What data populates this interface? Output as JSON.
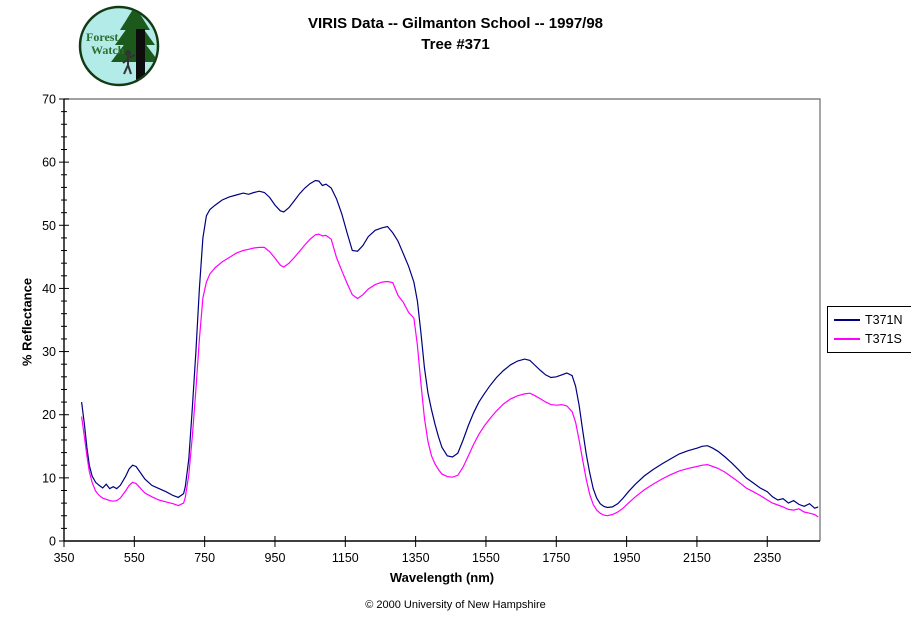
{
  "header": {
    "title_line1": "VIRIS Data -- Gilmanton School -- 1997/98",
    "title_line2": "Tree #371"
  },
  "logo": {
    "line1": "Forest",
    "line2": "Watch",
    "bg_color": "#b2ebe7",
    "tree_color": "#1c5a1c",
    "text_color": "#2f6d2f"
  },
  "legend": {
    "items": [
      {
        "label": "T371N",
        "color": "#000080"
      },
      {
        "label": "T371S",
        "color": "#ff00ff"
      }
    ]
  },
  "footer": {
    "copyright": "© 2000 University of New Hampshire"
  },
  "chart_data": {
    "type": "line",
    "title": "VIRIS Data -- Gilmanton School -- 1997/98 Tree #371",
    "xlabel": "Wavelength (nm)",
    "ylabel": "% Reflectance",
    "xlim": [
      350,
      2500
    ],
    "ylim": [
      0,
      70
    ],
    "x_ticks": [
      350,
      550,
      750,
      950,
      1150,
      1350,
      1550,
      1750,
      1950,
      2150,
      2350
    ],
    "y_ticks": [
      0,
      10,
      20,
      30,
      40,
      50,
      60,
      70
    ],
    "y_minor_step": 2,
    "grid": false,
    "legend_position": "right-outside",
    "frame_color": "#808080",
    "axis_color": "#000000",
    "x": [
      400,
      408,
      415,
      422,
      430,
      440,
      450,
      460,
      470,
      480,
      490,
      500,
      510,
      525,
      535,
      545,
      555,
      565,
      580,
      600,
      620,
      640,
      660,
      675,
      690,
      695,
      705,
      715,
      725,
      735,
      745,
      755,
      765,
      780,
      800,
      820,
      840,
      860,
      875,
      890,
      905,
      920,
      935,
      950,
      965,
      975,
      990,
      1005,
      1020,
      1035,
      1050,
      1065,
      1075,
      1085,
      1095,
      1110,
      1125,
      1140,
      1155,
      1170,
      1185,
      1200,
      1215,
      1235,
      1255,
      1270,
      1285,
      1300,
      1315,
      1330,
      1345,
      1355,
      1365,
      1375,
      1385,
      1395,
      1405,
      1415,
      1425,
      1440,
      1455,
      1470,
      1485,
      1500,
      1515,
      1530,
      1545,
      1560,
      1580,
      1600,
      1620,
      1640,
      1660,
      1675,
      1690,
      1705,
      1720,
      1735,
      1750,
      1765,
      1780,
      1795,
      1805,
      1815,
      1825,
      1835,
      1845,
      1855,
      1865,
      1875,
      1885,
      1895,
      1910,
      1925,
      1940,
      1955,
      1975,
      2000,
      2025,
      2050,
      2075,
      2100,
      2125,
      2150,
      2165,
      2180,
      2195,
      2210,
      2230,
      2250,
      2270,
      2290,
      2310,
      2330,
      2350,
      2365,
      2380,
      2395,
      2410,
      2425,
      2440,
      2455,
      2470,
      2485,
      2495
    ],
    "series": [
      {
        "name": "T371N",
        "color": "#000080",
        "values": [
          22.0,
          18.5,
          14.8,
          12.0,
          10.3,
          9.3,
          8.8,
          8.4,
          9.0,
          8.3,
          8.6,
          8.3,
          8.8,
          10.2,
          11.4,
          12.0,
          11.8,
          11.0,
          9.8,
          8.8,
          8.3,
          7.8,
          7.2,
          6.9,
          7.5,
          8.6,
          13.0,
          21.0,
          30.0,
          40.0,
          48.0,
          51.5,
          52.5,
          53.2,
          54.0,
          54.5,
          54.8,
          55.1,
          54.9,
          55.2,
          55.4,
          55.2,
          54.4,
          53.2,
          52.3,
          52.1,
          52.8,
          53.9,
          55.0,
          55.9,
          56.6,
          57.1,
          57.0,
          56.3,
          56.5,
          55.9,
          54.2,
          51.8,
          48.8,
          46.0,
          45.9,
          46.8,
          48.2,
          49.2,
          49.6,
          49.8,
          48.8,
          47.5,
          45.5,
          43.5,
          41.0,
          38.0,
          33.0,
          27.5,
          23.5,
          20.8,
          18.5,
          16.5,
          14.8,
          13.5,
          13.3,
          13.9,
          16.0,
          18.3,
          20.3,
          22.0,
          23.3,
          24.5,
          25.9,
          27.0,
          27.9,
          28.5,
          28.8,
          28.6,
          27.8,
          27.0,
          26.3,
          25.9,
          26.0,
          26.3,
          26.6,
          26.2,
          24.5,
          21.5,
          17.5,
          13.8,
          10.8,
          8.3,
          6.8,
          5.9,
          5.5,
          5.3,
          5.4,
          5.9,
          6.8,
          7.8,
          9.0,
          10.3,
          11.3,
          12.2,
          13.0,
          13.8,
          14.3,
          14.7,
          15.0,
          15.1,
          14.7,
          14.2,
          13.3,
          12.3,
          11.2,
          10.0,
          9.2,
          8.4,
          7.8,
          7.0,
          6.5,
          6.7,
          6.0,
          6.4,
          5.8,
          5.5,
          5.9,
          5.2,
          5.4
        ]
      },
      {
        "name": "T371S",
        "color": "#ff00ff",
        "values": [
          19.7,
          16.5,
          13.5,
          11.0,
          9.3,
          7.9,
          7.2,
          6.8,
          6.6,
          6.4,
          6.3,
          6.4,
          6.8,
          7.9,
          8.8,
          9.3,
          9.1,
          8.5,
          7.6,
          7.0,
          6.5,
          6.2,
          5.9,
          5.6,
          6.0,
          6.9,
          10.5,
          16.5,
          24.0,
          32.0,
          38.5,
          41.0,
          42.3,
          43.3,
          44.2,
          44.9,
          45.6,
          46.0,
          46.2,
          46.4,
          46.5,
          46.5,
          45.8,
          44.8,
          43.7,
          43.4,
          44.0,
          44.9,
          45.9,
          46.9,
          47.8,
          48.5,
          48.6,
          48.3,
          48.4,
          47.8,
          44.9,
          42.8,
          40.8,
          39.0,
          38.4,
          39.0,
          39.9,
          40.6,
          41.0,
          41.1,
          40.9,
          38.9,
          37.8,
          36.2,
          35.3,
          31.0,
          25.0,
          19.5,
          15.8,
          13.5,
          12.2,
          11.3,
          10.6,
          10.2,
          10.1,
          10.4,
          11.7,
          13.5,
          15.3,
          16.9,
          18.2,
          19.3,
          20.6,
          21.7,
          22.5,
          23.0,
          23.3,
          23.4,
          23.0,
          22.5,
          22.0,
          21.6,
          21.5,
          21.6,
          21.4,
          20.5,
          18.8,
          16.0,
          12.8,
          9.8,
          7.4,
          5.8,
          4.9,
          4.4,
          4.1,
          4.0,
          4.2,
          4.6,
          5.2,
          6.0,
          7.0,
          8.1,
          9.0,
          9.8,
          10.5,
          11.1,
          11.5,
          11.8,
          12.0,
          12.1,
          11.8,
          11.5,
          10.9,
          10.1,
          9.3,
          8.4,
          7.8,
          7.2,
          6.5,
          6.0,
          5.7,
          5.4,
          5.0,
          4.9,
          5.1,
          4.6,
          4.4,
          4.2,
          3.8
        ]
      }
    ]
  }
}
